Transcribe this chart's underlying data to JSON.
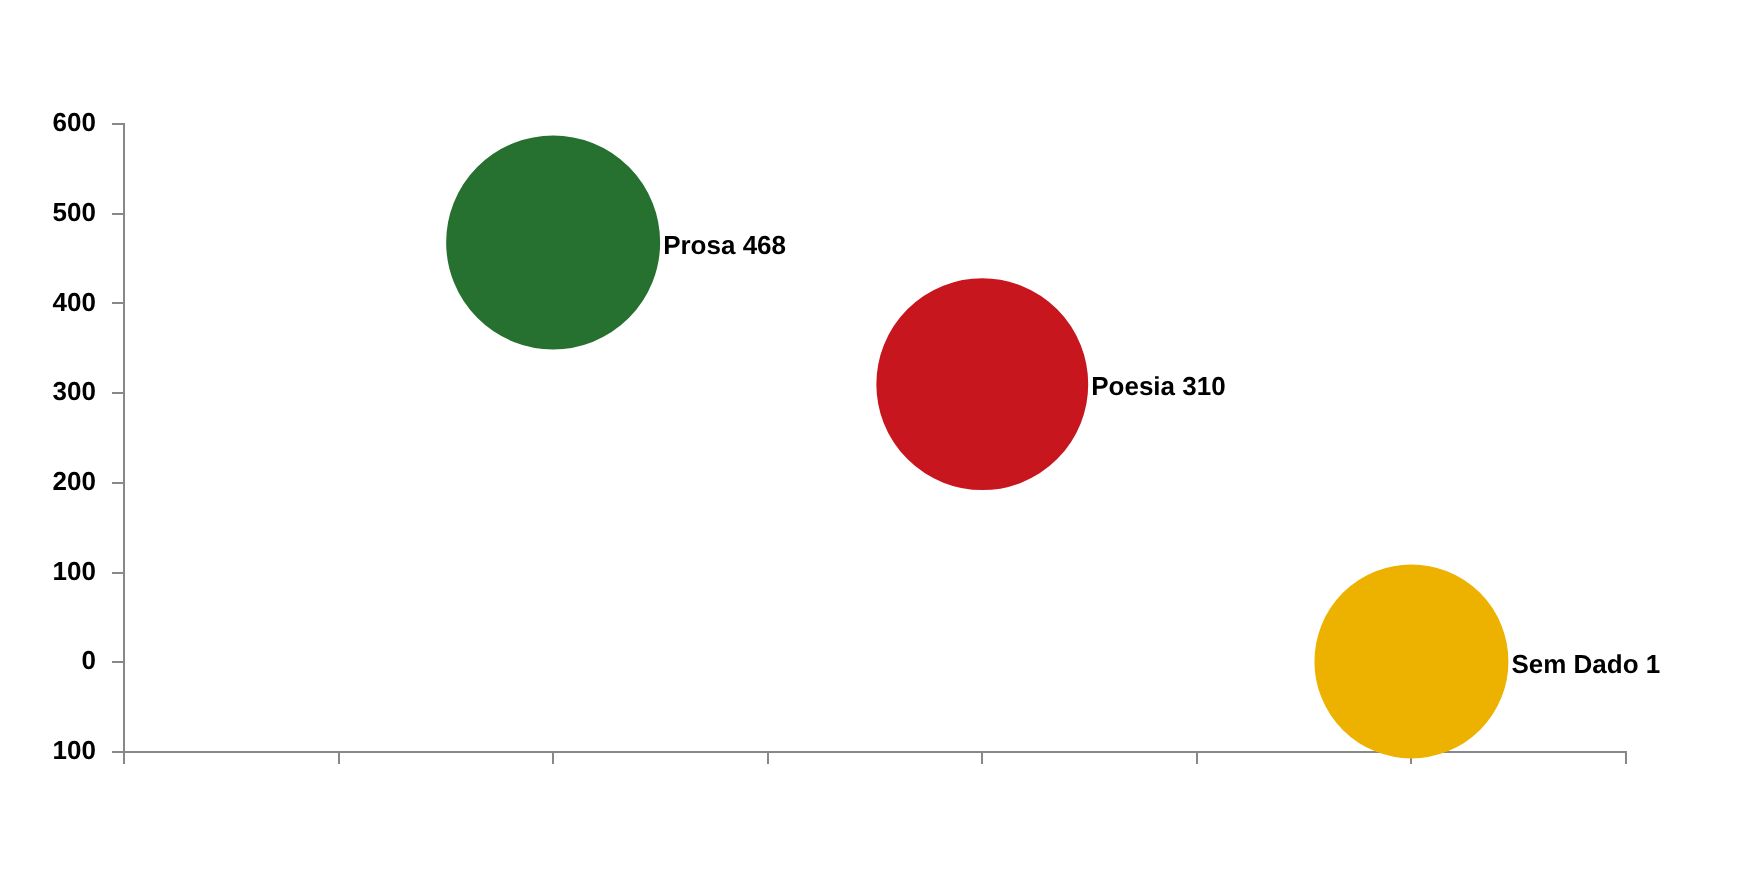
{
  "chart_data": {
    "type": "bubble",
    "categories": [
      null,
      null,
      null,
      null,
      null,
      null,
      null,
      null
    ],
    "ylim": [
      -100,
      600
    ],
    "yticks": [
      {
        "value": -100,
        "label": "100"
      },
      0,
      100,
      200,
      300,
      400,
      500,
      600
    ],
    "tick_labels": "y",
    "grid": false,
    "legend": false,
    "series": [
      {
        "name": "Prosa 468",
        "color": "#267030",
        "values": [
          null,
          null,
          468,
          null,
          null,
          null,
          null,
          null
        ],
        "sizes": [
          null,
          null,
          1,
          null,
          null,
          null,
          null,
          null
        ]
      },
      {
        "name": "Poesia 310",
        "color": "#c8161e",
        "values": [
          null,
          null,
          null,
          null,
          310,
          null,
          null,
          null
        ],
        "sizes": [
          null,
          null,
          null,
          null,
          0.98,
          null,
          null,
          null
        ]
      },
      {
        "name": "Sem Dado 1",
        "color": "#edb100",
        "values": [
          null,
          null,
          null,
          null,
          null,
          null,
          1,
          null
        ],
        "sizes": [
          null,
          null,
          null,
          null,
          null,
          null,
          0.82,
          null
        ]
      }
    ]
  }
}
